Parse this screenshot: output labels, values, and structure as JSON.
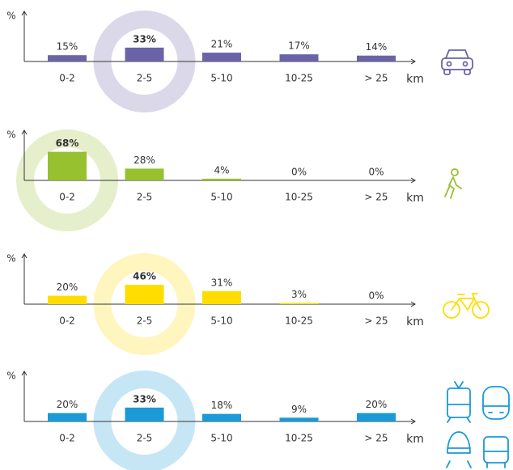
{
  "chart_data": [
    {
      "type": "bar",
      "y_label": "%",
      "x_label": "km",
      "color": "#6b63a8",
      "ylim": [
        0,
        100
      ],
      "categories": [
        "0-2",
        "2-5",
        "5-10",
        "10-25",
        "> 25"
      ],
      "values": [
        15,
        33,
        21,
        17,
        14
      ],
      "value_labels": [
        "15%",
        "33%",
        "21%",
        "17%",
        "14%"
      ]
    },
    {
      "type": "bar",
      "y_label": "%",
      "x_label": "km",
      "color": "#97c12f",
      "ylim": [
        0,
        100
      ],
      "categories": [
        "0-2",
        "2-5",
        "5-10",
        "10-25",
        "> 25"
      ],
      "values": [
        68,
        28,
        4,
        0,
        0
      ],
      "value_labels": [
        "68%",
        "28%",
        "4%",
        "0%",
        "0%"
      ]
    },
    {
      "type": "bar",
      "y_label": "%",
      "x_label": "km",
      "color": "#ffdd00",
      "ylim": [
        0,
        100
      ],
      "categories": [
        "0-2",
        "2-5",
        "5-10",
        "10-25",
        "> 25"
      ],
      "values": [
        20,
        46,
        31,
        3,
        0
      ],
      "value_labels": [
        "20%",
        "46%",
        "31%",
        "3%",
        "0%"
      ]
    },
    {
      "type": "bar",
      "y_label": "%",
      "x_label": "km",
      "color": "#1a9ad6",
      "ylim": [
        0,
        100
      ],
      "categories": [
        "0-2",
        "2-5",
        "5-10",
        "10-25",
        "> 25"
      ],
      "values": [
        20,
        33,
        18,
        9,
        20
      ],
      "value_labels": [
        "20%",
        "33%",
        "18%",
        "9%",
        "20%"
      ]
    }
  ]
}
